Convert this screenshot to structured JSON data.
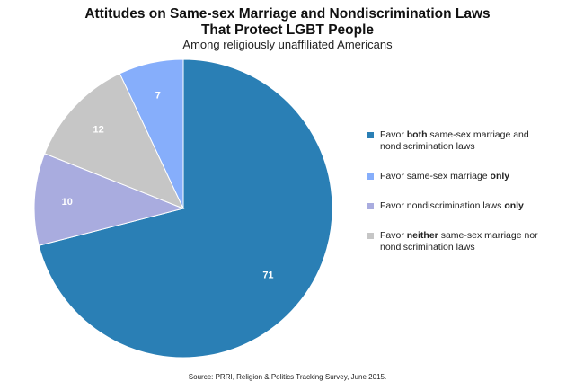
{
  "chart_data": {
    "type": "pie",
    "title_line1": "Attitudes on Same-sex Marriage and Nondiscrimination Laws",
    "title_line2": "That Protect LGBT People",
    "subtitle": "Among religiously unaffiliated Americans",
    "slices": [
      {
        "label_parts": [
          {
            "text": "Favor ",
            "bold": false
          },
          {
            "text": "both",
            "bold": true
          },
          {
            "text": " same-sex marriage and nondiscrimination laws",
            "bold": false
          }
        ],
        "value": 71,
        "value_label": "71",
        "color": "#2a7fb5"
      },
      {
        "label_parts": [
          {
            "text": "Favor same-sex marriage ",
            "bold": false
          },
          {
            "text": "only",
            "bold": true
          }
        ],
        "value": 7,
        "value_label": "7",
        "color": "#86aefb"
      },
      {
        "label_parts": [
          {
            "text": "Favor nondiscrimination laws ",
            "bold": false
          },
          {
            "text": "only",
            "bold": true
          }
        ],
        "value": 10,
        "value_label": "10",
        "color": "#a9acdf"
      },
      {
        "label_parts": [
          {
            "text": "Favor ",
            "bold": false
          },
          {
            "text": "neither",
            "bold": true
          },
          {
            "text": " same-sex marriage nor nondiscrimination laws",
            "bold": false
          }
        ],
        "value": 12,
        "value_label": "12",
        "color": "#c6c6c6"
      }
    ],
    "draw_order": [
      0,
      2,
      3,
      1
    ],
    "legend_position": "right",
    "value_label_color": "#ffffff"
  },
  "source": "Source: PRRI, Religion & Politics Tracking Survey, June 2015."
}
